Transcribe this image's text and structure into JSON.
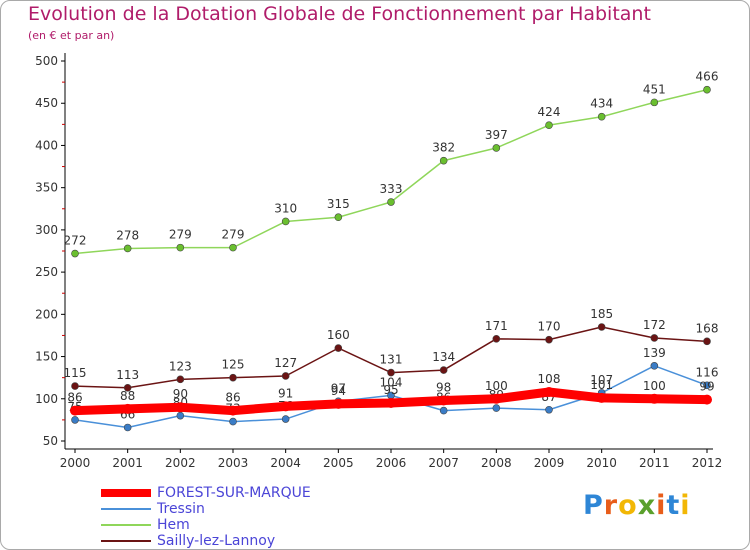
{
  "title": "Evolution de la Dotation Globale de Fonctionnement par Habitant",
  "subtitle": "(en € et par an)",
  "brand": {
    "name": "Proxiti",
    "letters": [
      {
        "ch": "P",
        "color": "#2e86d6"
      },
      {
        "ch": "r",
        "color": "#e85d1a"
      },
      {
        "ch": "o",
        "color": "#f2b705"
      },
      {
        "ch": "x",
        "color": "#5aa02c"
      },
      {
        "ch": "i",
        "color": "#e85d1a"
      },
      {
        "ch": "t",
        "color": "#2e86d6"
      },
      {
        "ch": "i",
        "color": "#f2b705"
      }
    ]
  },
  "legend": [
    {
      "name": "FOREST-SUR-MARQUE",
      "color": "#ff0000"
    },
    {
      "name": "Tressin",
      "color": "#4a90d9"
    },
    {
      "name": "Hem",
      "color": "#8fd65a"
    },
    {
      "name": "Sailly-lez-Lannoy",
      "color": "#6b1414"
    }
  ],
  "chart_data": {
    "type": "line",
    "x": [
      "2000",
      "2001",
      "2002",
      "2003",
      "2004",
      "2005",
      "2006",
      "2007",
      "2008",
      "2009",
      "2010",
      "2011",
      "2012"
    ],
    "ylim": [
      50,
      500
    ],
    "yticks": [
      "50",
      "100",
      "150",
      "200",
      "250",
      "300",
      "350",
      "400",
      "450",
      "500"
    ],
    "grid": false,
    "legend_position": "bottom-left",
    "series": [
      {
        "name": "Hem",
        "color": "#8fd65a",
        "marker": "#6abf2f",
        "values": [
          272,
          278,
          279,
          279,
          310,
          315,
          333,
          382,
          397,
          424,
          434,
          451,
          466
        ],
        "labels": [
          "272",
          "278",
          "279",
          "279",
          "310",
          "315",
          "333",
          "382",
          "397",
          "424",
          "434",
          "451",
          "466"
        ]
      },
      {
        "name": "Sailly-lez-Lannoy",
        "color": "#6b1414",
        "marker": "#6b1414",
        "values": [
          115,
          113,
          123,
          125,
          127,
          160,
          131,
          134,
          171,
          170,
          185,
          172,
          168
        ],
        "labels": [
          "115",
          "113",
          "123",
          "125",
          "127",
          "160",
          "131",
          "134",
          "171",
          "170",
          "185",
          "172",
          "168"
        ]
      },
      {
        "name": "Tressin",
        "color": "#4a90d9",
        "marker": "#3a7cc6",
        "values": [
          75,
          66,
          80,
          73,
          76,
          97,
          104,
          86,
          89,
          87,
          107,
          139,
          116
        ],
        "labels": [
          "75",
          "66",
          "80",
          "73",
          "76",
          "97",
          "104",
          "86",
          "89",
          "87",
          "107",
          "139",
          "116"
        ]
      },
      {
        "name": "FOREST-SUR-MARQUE",
        "color": "#ff0000",
        "marker": "#ff0000",
        "values": [
          86,
          88,
          90,
          86,
          91,
          94,
          95,
          98,
          100,
          108,
          101,
          100,
          99
        ],
        "labels": [
          "86",
          "88",
          "90",
          "86",
          "91",
          "94",
          "95",
          "98",
          "100",
          "108",
          "101",
          "100",
          "99"
        ]
      }
    ]
  }
}
